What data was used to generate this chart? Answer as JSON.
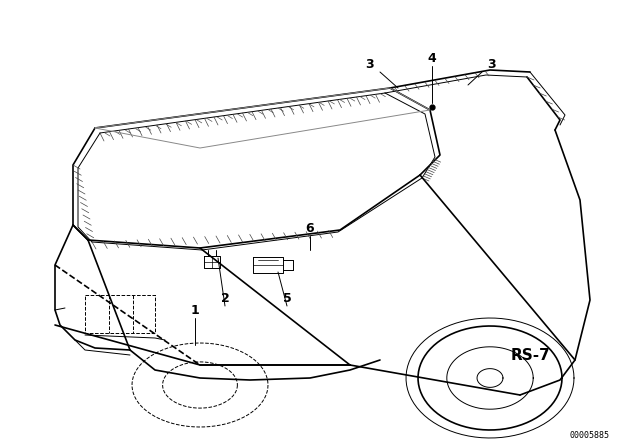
{
  "background_color": "#ffffff",
  "rs7_text": "RS-7",
  "code_text": "00005885",
  "fig_width": 6.4,
  "fig_height": 4.48,
  "dpi": 100,
  "label_fontsize": 9,
  "rs7_fontsize": 11,
  "code_fontsize": 6
}
